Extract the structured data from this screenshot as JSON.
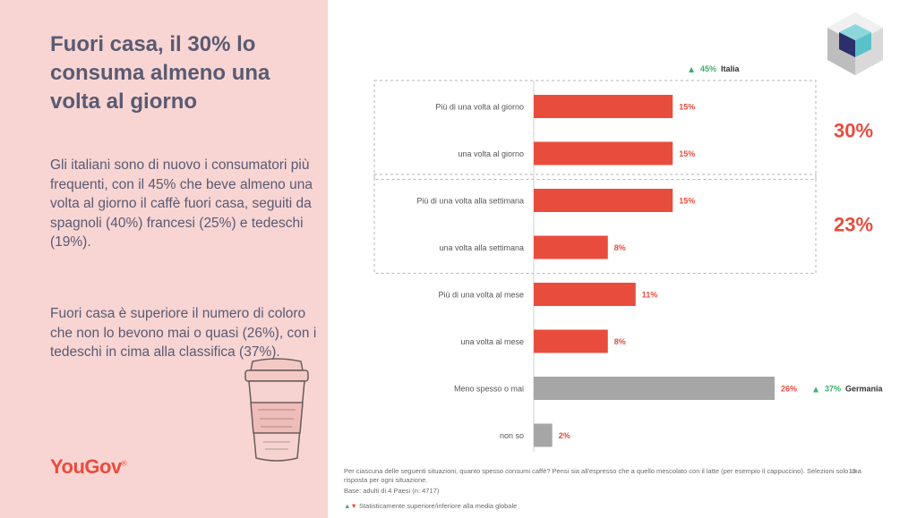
{
  "title": "Fuori casa, il 30% lo consuma almeno una volta al giorno",
  "paragraph1": "Gli italiani sono di nuovo i consumatori più frequenti, con il 45% che beve almeno una volta al giorno il caffè fuori casa, seguiti da spagnoli (40%) francesi (25%) e tedeschi (19%).",
  "paragraph2": "Fuori casa è superiore il numero di coloro che non lo bevono mai o quasi (26%), con i tedeschi in cima alla classifica (37%).",
  "brand": "YouGov",
  "brand_mark": "®",
  "colors": {
    "left_bg": "#f8d5d3",
    "bar_main": "#e84c3d",
    "bar_neutral": "#a6a6a6",
    "text": "#5a5a72",
    "up": "#3fae6b",
    "down": "#e84c3d"
  },
  "icons": [
    "coffee-cup-icon",
    "cube-logo-icon",
    "triangle-up-icon",
    "triangle-down-icon"
  ],
  "chart_data": {
    "type": "bar",
    "orientation": "horizontal",
    "categories": [
      "Più di una volta al giorno",
      "una volta al giorno",
      "Più di una volta alla settimana",
      "una volta alla settimana",
      "Più di una volta  al mese",
      "una volta al mese",
      "Meno spesso o mai",
      "non so"
    ],
    "values": [
      15,
      15,
      15,
      8,
      11,
      8,
      26,
      2
    ],
    "value_labels": [
      "15%",
      "15%",
      "15%",
      "8%",
      "11%",
      "8%",
      "26%",
      "2%"
    ],
    "xlim": [
      0,
      26
    ],
    "grid": false,
    "groups": [
      {
        "label": "30%",
        "categories": [
          "Più di una volta al giorno",
          "una volta al giorno"
        ]
      },
      {
        "label": "23%",
        "categories": [
          "Più di una volta alla settimana",
          "una volta alla settimana"
        ]
      }
    ],
    "annotations": [
      {
        "value": "45%",
        "label": "Italia",
        "category": "Più di una volta al giorno"
      },
      {
        "value": "37%",
        "label": "Germania",
        "category": "Meno spesso o mai"
      }
    ]
  },
  "footnotes": {
    "question": "Per ciascuna delle seguenti situazioni, quanto spesso consumi caffè? Pensi sia all'espresso che a quello mescolato con il latte (per esempio il cappuccino). Selezioni solo una risposta per ogni situazione.",
    "base": "Base: adulti di 4 Paesi (n: 4717)",
    "legend": "Statisticamente superiore/inferiore alla media globale",
    "page_number": "15"
  }
}
